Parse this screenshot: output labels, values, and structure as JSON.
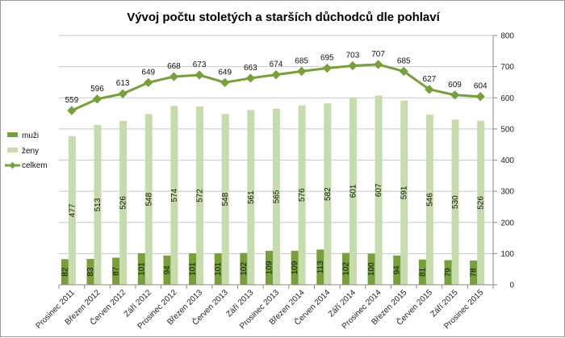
{
  "chart_data": {
    "type": "bar",
    "title": "Vývoj počtu stoletých a starších důchodců dle pohlaví",
    "categories": [
      "Prosinec 2011",
      "Březen 2012",
      "Červen 2012",
      "Září 2012",
      "Prosinec 2012",
      "Březen 2013",
      "Červen 2013",
      "Září 2013",
      "Prosinec 2013",
      "Březen 2014",
      "Červen 2014",
      "Září 2014",
      "Prosinec 2014",
      "Březen 2015",
      "Červen 2015",
      "Září 2015",
      "Prosinec 2015"
    ],
    "series": [
      {
        "name": "muži",
        "kind": "bar",
        "color": "#77a03a",
        "values": [
          82,
          83,
          87,
          101,
          94,
          101,
          101,
          102,
          109,
          109,
          113,
          102,
          100,
          94,
          81,
          79,
          78
        ]
      },
      {
        "name": "ženy",
        "kind": "bar",
        "color": "#c6dcac",
        "values": [
          477,
          513,
          526,
          548,
          574,
          572,
          548,
          561,
          565,
          576,
          582,
          601,
          607,
          591,
          546,
          530,
          526
        ]
      },
      {
        "name": "celkem",
        "kind": "line",
        "color": "#77a03a",
        "values": [
          559,
          596,
          613,
          649,
          668,
          673,
          649,
          663,
          674,
          685,
          695,
          703,
          707,
          685,
          627,
          609,
          604
        ]
      }
    ],
    "ylim": [
      0,
      800
    ],
    "yticks": [
      0,
      100,
      200,
      300,
      400,
      500,
      600,
      700,
      800
    ],
    "y_axis_side": "right",
    "grid": true,
    "legend_position": "left"
  }
}
